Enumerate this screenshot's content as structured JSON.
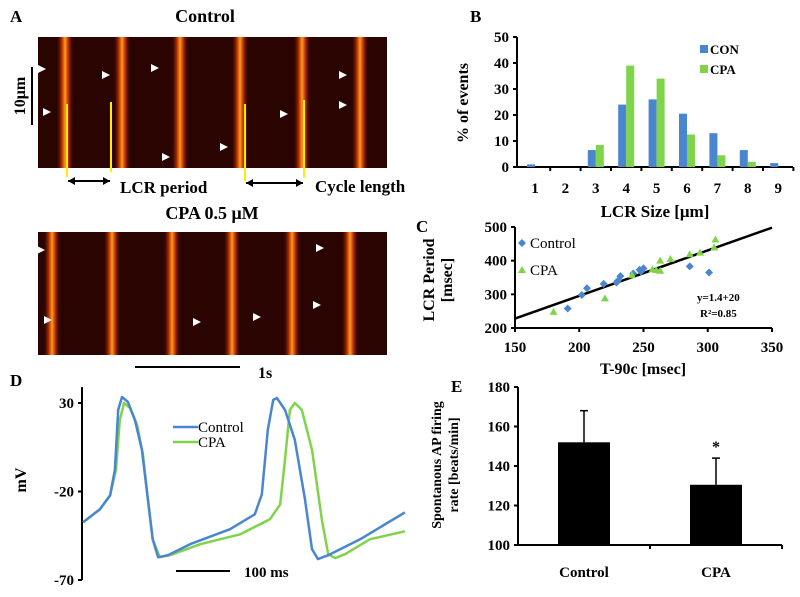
{
  "colors": {
    "control": "#4a86d0",
    "cpa": "#7fd44a",
    "marker_yellow": "#ffee00",
    "kymo_bg": "#2a0400"
  },
  "panel_a": {
    "label": "A",
    "title_control": "Control",
    "title_cpa": "CPA 0.5 μM",
    "scale_y_label": "10μm",
    "scale_x_label": "1s",
    "lcr_period_label": "LCR period",
    "cycle_length_label": "Cycle length"
  },
  "panel_d": {
    "label": "D",
    "ylabel": "mV",
    "yticks": [
      "30",
      "-20",
      "-70"
    ],
    "scale_label": "100 ms",
    "legend": [
      "Control",
      "CPA"
    ]
  },
  "chart_data": [
    {
      "id": "B",
      "label": "B",
      "type": "bar",
      "xlabel": "LCR Size [μm]",
      "ylabel": "% of events",
      "ylim": [
        0,
        50
      ],
      "yticks": [
        0,
        10,
        20,
        30,
        40,
        50
      ],
      "categories": [
        "1",
        "2",
        "3",
        "4",
        "5",
        "6",
        "7",
        "8",
        "9"
      ],
      "legend_position": "top-right",
      "series": [
        {
          "name": "CON",
          "values": [
            1,
            0,
            6.5,
            24,
            26,
            20.5,
            13,
            6.5,
            1.5
          ]
        },
        {
          "name": "CPA",
          "values": [
            0,
            0,
            8.5,
            39,
            34,
            12.5,
            4.5,
            2,
            0
          ]
        }
      ]
    },
    {
      "id": "C",
      "label": "C",
      "type": "scatter",
      "xlabel": "T-90c [msec]",
      "ylabel": [
        "LCR Period",
        "[msec]"
      ],
      "xlim": [
        150,
        350
      ],
      "ylim": [
        200,
        500
      ],
      "xticks": [
        150,
        200,
        250,
        300,
        350
      ],
      "yticks": [
        200,
        300,
        400,
        500
      ],
      "legend_position": "top-left",
      "series": [
        {
          "name": "Control",
          "marker": "diamond",
          "points": [
            [
              191,
              258
            ],
            [
              202,
              298
            ],
            [
              206,
              318
            ],
            [
              219,
              331
            ],
            [
              229,
              335
            ],
            [
              230,
              340
            ],
            [
              232,
              354
            ],
            [
              242,
              362
            ],
            [
              247,
              373
            ],
            [
              250,
              377
            ],
            [
              248,
              368
            ],
            [
              286,
              383
            ],
            [
              301,
              365
            ]
          ]
        },
        {
          "name": "CPA",
          "marker": "triangle",
          "points": [
            [
              180,
              248
            ],
            [
              220,
              288
            ],
            [
              241,
              357
            ],
            [
              257,
              374
            ],
            [
              260,
              372
            ],
            [
              263,
              400
            ],
            [
              263,
              370
            ],
            [
              271,
              405
            ],
            [
              286,
              419
            ],
            [
              294,
              424
            ],
            [
              306,
              463
            ],
            [
              305,
              439
            ]
          ]
        }
      ],
      "fit_line": [
        [
          150,
          228
        ],
        [
          350,
          498
        ]
      ],
      "annotations": [
        "y=1.4+20",
        "R²=0.85"
      ]
    },
    {
      "id": "D",
      "label": "D",
      "type": "line",
      "xlabel": "",
      "ylabel": "mV",
      "xunit": "ms",
      "ylim": [
        -70,
        39
      ],
      "xlim": [
        0,
        600
      ],
      "yticks": [
        30,
        -20,
        -70
      ],
      "series": [
        {
          "name": "Control",
          "points": [
            [
              2,
              -37.4
            ],
            [
              33,
              -30.1
            ],
            [
              52,
              -22.2
            ],
            [
              61,
              -7.6
            ],
            [
              67,
              26.1
            ],
            [
              74,
              33.4
            ],
            [
              85,
              30.6
            ],
            [
              98,
              20.4
            ],
            [
              111,
              3.6
            ],
            [
              122,
              -24.5
            ],
            [
              131,
              -47
            ],
            [
              141,
              -57.1
            ],
            [
              159,
              -56
            ],
            [
              200,
              -49.8
            ],
            [
              274,
              -41.3
            ],
            [
              320,
              -32.9
            ],
            [
              333,
              -21.7
            ],
            [
              344,
              14.8
            ],
            [
              354,
              31.7
            ],
            [
              361,
              32.8
            ],
            [
              376,
              26.1
            ],
            [
              394,
              9.2
            ],
            [
              413,
              -24.5
            ],
            [
              426,
              -52.6
            ],
            [
              437,
              -58.2
            ],
            [
              456,
              -56
            ],
            [
              515,
              -47
            ],
            [
              598,
              -31.8
            ]
          ]
        },
        {
          "name": "CPA",
          "points": [
            [
              2,
              -37.4
            ],
            [
              33,
              -30.1
            ],
            [
              52,
              -22.2
            ],
            [
              63,
              -7.6
            ],
            [
              70,
              20.4
            ],
            [
              78,
              30
            ],
            [
              89,
              27.2
            ],
            [
              102,
              17.6
            ],
            [
              113,
              0.8
            ],
            [
              122,
              -24.5
            ],
            [
              131,
              -47
            ],
            [
              144,
              -57.1
            ],
            [
              163,
              -56
            ],
            [
              219,
              -49.8
            ],
            [
              293,
              -44.2
            ],
            [
              348,
              -35.7
            ],
            [
              367,
              -27.3
            ],
            [
              376,
              -2
            ],
            [
              385,
              26.1
            ],
            [
              394,
              30
            ],
            [
              407,
              26.1
            ],
            [
              426,
              3.6
            ],
            [
              444,
              -35.7
            ],
            [
              456,
              -55.4
            ],
            [
              469,
              -57.6
            ],
            [
              487,
              -55.4
            ],
            [
              533,
              -47
            ],
            [
              598,
              -42.5
            ]
          ]
        }
      ]
    },
    {
      "id": "E",
      "label": "E",
      "type": "bar",
      "xlabel": "",
      "ylabel": [
        "Spontanous AP firing",
        "rate [beats/min]"
      ],
      "ylim": [
        100,
        180
      ],
      "yticks": [
        100,
        120,
        140,
        160,
        180
      ],
      "categories": [
        "Control",
        "CPA"
      ],
      "values": [
        152,
        130.5
      ],
      "error_upper": [
        168,
        144
      ],
      "annotations": [
        "",
        "*"
      ]
    }
  ]
}
